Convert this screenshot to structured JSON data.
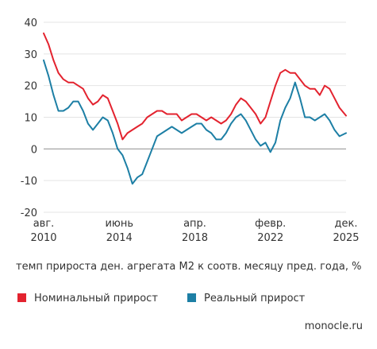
{
  "chart_data": {
    "type": "line",
    "ylim": [
      -20,
      40
    ],
    "y_ticks": [
      -20,
      -10,
      0,
      10,
      20,
      30,
      40
    ],
    "x_ticks": [
      {
        "label_top": "авг.",
        "label_bottom": "2010",
        "t": "2010-08"
      },
      {
        "label_top": "июнь",
        "label_bottom": "2014",
        "t": "2014-06"
      },
      {
        "label_top": "апр.",
        "label_bottom": "2018",
        "t": "2018-04"
      },
      {
        "label_top": "февр.",
        "label_bottom": "2022",
        "t": "2022-02"
      },
      {
        "label_top": "дек.",
        "label_bottom": "2025",
        "t": "2025-12"
      }
    ],
    "grid": "horizontal",
    "caption": "темп прироста ден. агрегата М2 к соотв. месяцу пред. года, %",
    "series": [
      {
        "name": "Номинальный прирост",
        "color": "#e3232f",
        "points": [
          [
            "2010-08",
            36.5
          ],
          [
            "2010-11",
            33
          ],
          [
            "2011-02",
            28
          ],
          [
            "2011-05",
            24
          ],
          [
            "2011-08",
            22
          ],
          [
            "2011-11",
            21
          ],
          [
            "2012-02",
            21
          ],
          [
            "2012-05",
            20
          ],
          [
            "2012-08",
            19
          ],
          [
            "2012-11",
            16
          ],
          [
            "2013-02",
            14
          ],
          [
            "2013-05",
            15
          ],
          [
            "2013-08",
            17
          ],
          [
            "2013-11",
            16
          ],
          [
            "2014-02",
            12
          ],
          [
            "2014-05",
            8
          ],
          [
            "2014-08",
            3
          ],
          [
            "2014-11",
            5
          ],
          [
            "2015-02",
            6
          ],
          [
            "2015-05",
            7
          ],
          [
            "2015-08",
            8
          ],
          [
            "2015-11",
            10
          ],
          [
            "2016-02",
            11
          ],
          [
            "2016-05",
            12
          ],
          [
            "2016-08",
            12
          ],
          [
            "2016-11",
            11
          ],
          [
            "2017-02",
            11
          ],
          [
            "2017-05",
            11
          ],
          [
            "2017-08",
            9
          ],
          [
            "2017-11",
            10
          ],
          [
            "2018-02",
            11
          ],
          [
            "2018-05",
            11
          ],
          [
            "2018-08",
            10
          ],
          [
            "2018-11",
            9
          ],
          [
            "2019-02",
            10
          ],
          [
            "2019-05",
            9
          ],
          [
            "2019-08",
            8
          ],
          [
            "2019-11",
            9
          ],
          [
            "2020-02",
            11
          ],
          [
            "2020-05",
            14
          ],
          [
            "2020-08",
            16
          ],
          [
            "2020-11",
            15
          ],
          [
            "2021-02",
            13
          ],
          [
            "2021-05",
            11
          ],
          [
            "2021-08",
            8
          ],
          [
            "2021-11",
            10
          ],
          [
            "2022-02",
            15
          ],
          [
            "2022-05",
            20
          ],
          [
            "2022-08",
            24
          ],
          [
            "2022-11",
            25
          ],
          [
            "2023-02",
            24
          ],
          [
            "2023-05",
            24
          ],
          [
            "2023-08",
            22
          ],
          [
            "2023-11",
            20
          ],
          [
            "2024-02",
            19
          ],
          [
            "2024-05",
            19
          ],
          [
            "2024-08",
            17
          ],
          [
            "2024-11",
            20
          ],
          [
            "2025-02",
            19
          ],
          [
            "2025-05",
            16
          ],
          [
            "2025-08",
            13
          ],
          [
            "2025-12",
            10.5
          ]
        ]
      },
      {
        "name": "Реальный прирост",
        "color": "#1d7fa5",
        "points": [
          [
            "2010-08",
            28
          ],
          [
            "2010-11",
            23
          ],
          [
            "2011-02",
            17
          ],
          [
            "2011-05",
            12
          ],
          [
            "2011-08",
            12
          ],
          [
            "2011-11",
            13
          ],
          [
            "2012-02",
            15
          ],
          [
            "2012-05",
            15
          ],
          [
            "2012-08",
            12
          ],
          [
            "2012-11",
            8
          ],
          [
            "2013-02",
            6
          ],
          [
            "2013-05",
            8
          ],
          [
            "2013-08",
            10
          ],
          [
            "2013-11",
            9
          ],
          [
            "2014-02",
            5
          ],
          [
            "2014-05",
            0
          ],
          [
            "2014-08",
            -2
          ],
          [
            "2014-11",
            -6
          ],
          [
            "2015-02",
            -11
          ],
          [
            "2015-05",
            -9
          ],
          [
            "2015-08",
            -8
          ],
          [
            "2015-11",
            -4
          ],
          [
            "2016-02",
            0
          ],
          [
            "2016-05",
            4
          ],
          [
            "2016-08",
            5
          ],
          [
            "2016-11",
            6
          ],
          [
            "2017-02",
            7
          ],
          [
            "2017-05",
            6
          ],
          [
            "2017-08",
            5
          ],
          [
            "2017-11",
            6
          ],
          [
            "2018-02",
            7
          ],
          [
            "2018-05",
            8
          ],
          [
            "2018-08",
            8
          ],
          [
            "2018-11",
            6
          ],
          [
            "2019-02",
            5
          ],
          [
            "2019-05",
            3
          ],
          [
            "2019-08",
            3
          ],
          [
            "2019-11",
            5
          ],
          [
            "2020-02",
            8
          ],
          [
            "2020-05",
            10
          ],
          [
            "2020-08",
            11
          ],
          [
            "2020-11",
            9
          ],
          [
            "2021-02",
            6
          ],
          [
            "2021-05",
            3
          ],
          [
            "2021-08",
            1
          ],
          [
            "2021-11",
            2
          ],
          [
            "2022-02",
            -1
          ],
          [
            "2022-05",
            2
          ],
          [
            "2022-08",
            9
          ],
          [
            "2022-11",
            13
          ],
          [
            "2023-02",
            16
          ],
          [
            "2023-05",
            21
          ],
          [
            "2023-08",
            16
          ],
          [
            "2023-11",
            10
          ],
          [
            "2024-02",
            10
          ],
          [
            "2024-05",
            9
          ],
          [
            "2024-08",
            10
          ],
          [
            "2024-11",
            11
          ],
          [
            "2025-02",
            9
          ],
          [
            "2025-05",
            6
          ],
          [
            "2025-08",
            4
          ],
          [
            "2025-12",
            5
          ]
        ]
      }
    ]
  },
  "legend": {
    "nominal_label": "Номинальный прирост",
    "real_label": "Реальный прирост"
  },
  "credit": "monocle.ru"
}
